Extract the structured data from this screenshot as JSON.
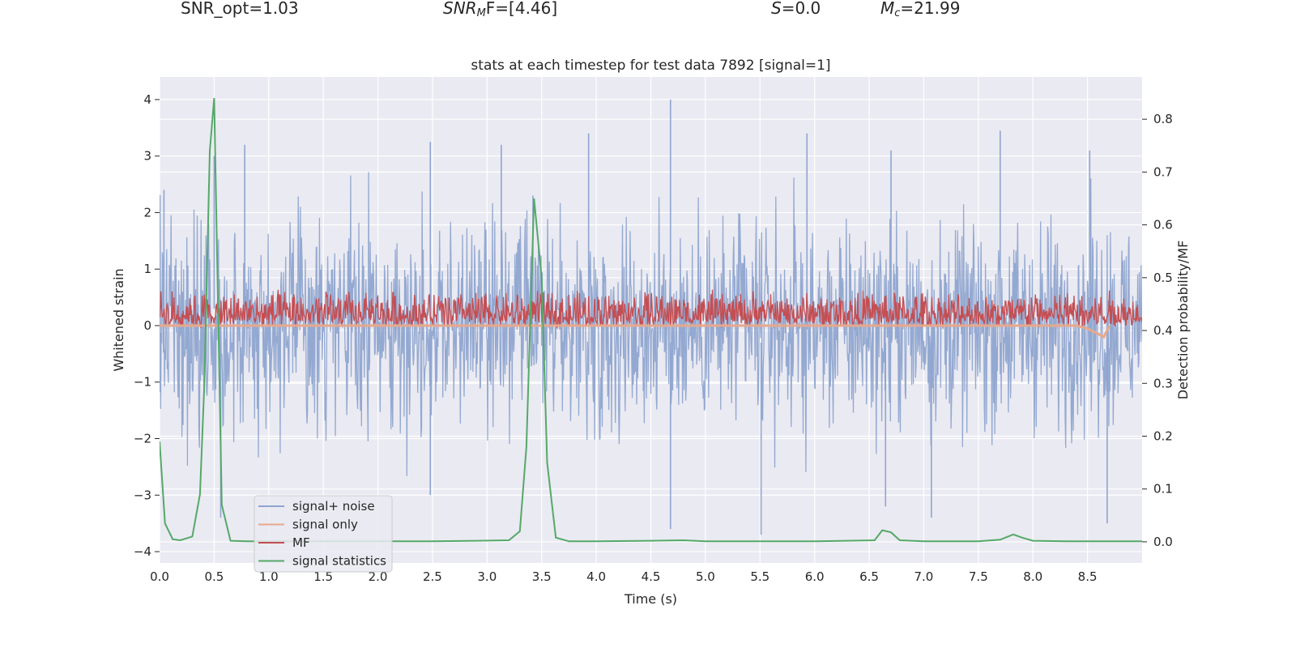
{
  "header": {
    "snr_opt": "SNR_opt=1.03",
    "snr_mf_base": "SNR",
    "snr_mf_sub": "M",
    "snr_mf_rest": "F=[4.46]",
    "s_var": "S",
    "s_val": "=0.0",
    "mc_var": "M",
    "mc_sub": "c",
    "mc_val": "=21.99"
  },
  "chart_data": {
    "type": "line",
    "title": "stats at each timestep for test data 7892 [signal=1]",
    "xlabel": "Time (s)",
    "ylabel": "Whitened strain",
    "ylabel_right": "Detection probability/MF",
    "xlim": [
      0.0,
      9.0
    ],
    "ylim": [
      -4.2,
      4.4
    ],
    "ylim_right": [
      -0.04,
      0.88
    ],
    "x_ticks": [
      "0.0",
      "0.5",
      "1.0",
      "1.5",
      "2.0",
      "2.5",
      "3.0",
      "3.5",
      "4.0",
      "4.5",
      "5.0",
      "5.5",
      "6.0",
      "6.5",
      "7.0",
      "7.5",
      "8.0",
      "8.5"
    ],
    "y_ticks": [
      "4",
      "3",
      "2",
      "1",
      "0",
      "−1",
      "−2",
      "−3",
      "−4"
    ],
    "y_ticks_right": [
      "0.8",
      "0.7",
      "0.6",
      "0.5",
      "0.4",
      "0.3",
      "0.2",
      "0.1",
      "0.0"
    ],
    "legend_position": "lower-left",
    "grid": true,
    "series": [
      {
        "name": "signal+ noise",
        "color": "#8fa5cf",
        "axis": "left",
        "description": "dense whitened strain noise spanning about -3.4 to 4.0",
        "noise_envelope": {
          "upper_typical": 1.9,
          "upper_max": 4.0,
          "lower_typical": -1.9,
          "lower_min": -3.7
        },
        "notable_peaks": [
          [
            0.04,
            2.4
          ],
          [
            0.5,
            3.0
          ],
          [
            0.78,
            3.2
          ],
          [
            2.48,
            3.25
          ],
          [
            3.13,
            3.2
          ],
          [
            3.42,
            2.3
          ],
          [
            3.93,
            3.4
          ],
          [
            4.68,
            4.0
          ],
          [
            5.93,
            3.4
          ],
          [
            6.7,
            3.1
          ],
          [
            7.7,
            3.45
          ],
          [
            8.52,
            3.1
          ]
        ],
        "notable_troughs": [
          [
            0.56,
            -3.4
          ],
          [
            2.48,
            -3.0
          ],
          [
            4.68,
            -3.6
          ],
          [
            5.51,
            -3.7
          ],
          [
            6.65,
            -3.2
          ],
          [
            7.07,
            -3.4
          ],
          [
            8.68,
            -3.5
          ]
        ]
      },
      {
        "name": "signal only",
        "color": "#e8a88a",
        "axis": "left",
        "x": [
          0.0,
          8.0,
          8.2,
          8.4,
          8.5,
          8.6,
          8.65,
          8.7
        ],
        "y": [
          0.0,
          0.0,
          0.0,
          0.0,
          -0.05,
          -0.15,
          -0.2,
          0.0
        ]
      },
      {
        "name": "MF",
        "color": "#c44e52",
        "axis": "right",
        "description": "matched filter output fluctuating between about 0.40 and 0.50",
        "range": [
          0.4,
          0.5
        ]
      },
      {
        "name": "signal statistics",
        "color": "#55a868",
        "axis": "right",
        "x": [
          0.0,
          0.05,
          0.12,
          0.19,
          0.3,
          0.37,
          0.41,
          0.46,
          0.5,
          0.57,
          0.65,
          0.8,
          1.0,
          2.0,
          2.5,
          2.9,
          3.2,
          3.3,
          3.36,
          3.43,
          3.5,
          3.55,
          3.63,
          3.75,
          4.0,
          4.5,
          4.8,
          5.0,
          6.0,
          6.55,
          6.62,
          6.7,
          6.78,
          7.0,
          7.5,
          7.7,
          7.82,
          7.9,
          8.0,
          8.3,
          9.0
        ],
        "y": [
          0.19,
          0.035,
          0.005,
          0.003,
          0.01,
          0.09,
          0.3,
          0.74,
          0.84,
          0.07,
          0.002,
          0.001,
          0.001,
          0.001,
          0.001,
          0.002,
          0.003,
          0.02,
          0.18,
          0.65,
          0.5,
          0.15,
          0.008,
          0.001,
          0.001,
          0.002,
          0.003,
          0.001,
          0.001,
          0.003,
          0.022,
          0.018,
          0.003,
          0.001,
          0.001,
          0.004,
          0.014,
          0.008,
          0.002,
          0.001,
          0.001
        ]
      }
    ]
  }
}
